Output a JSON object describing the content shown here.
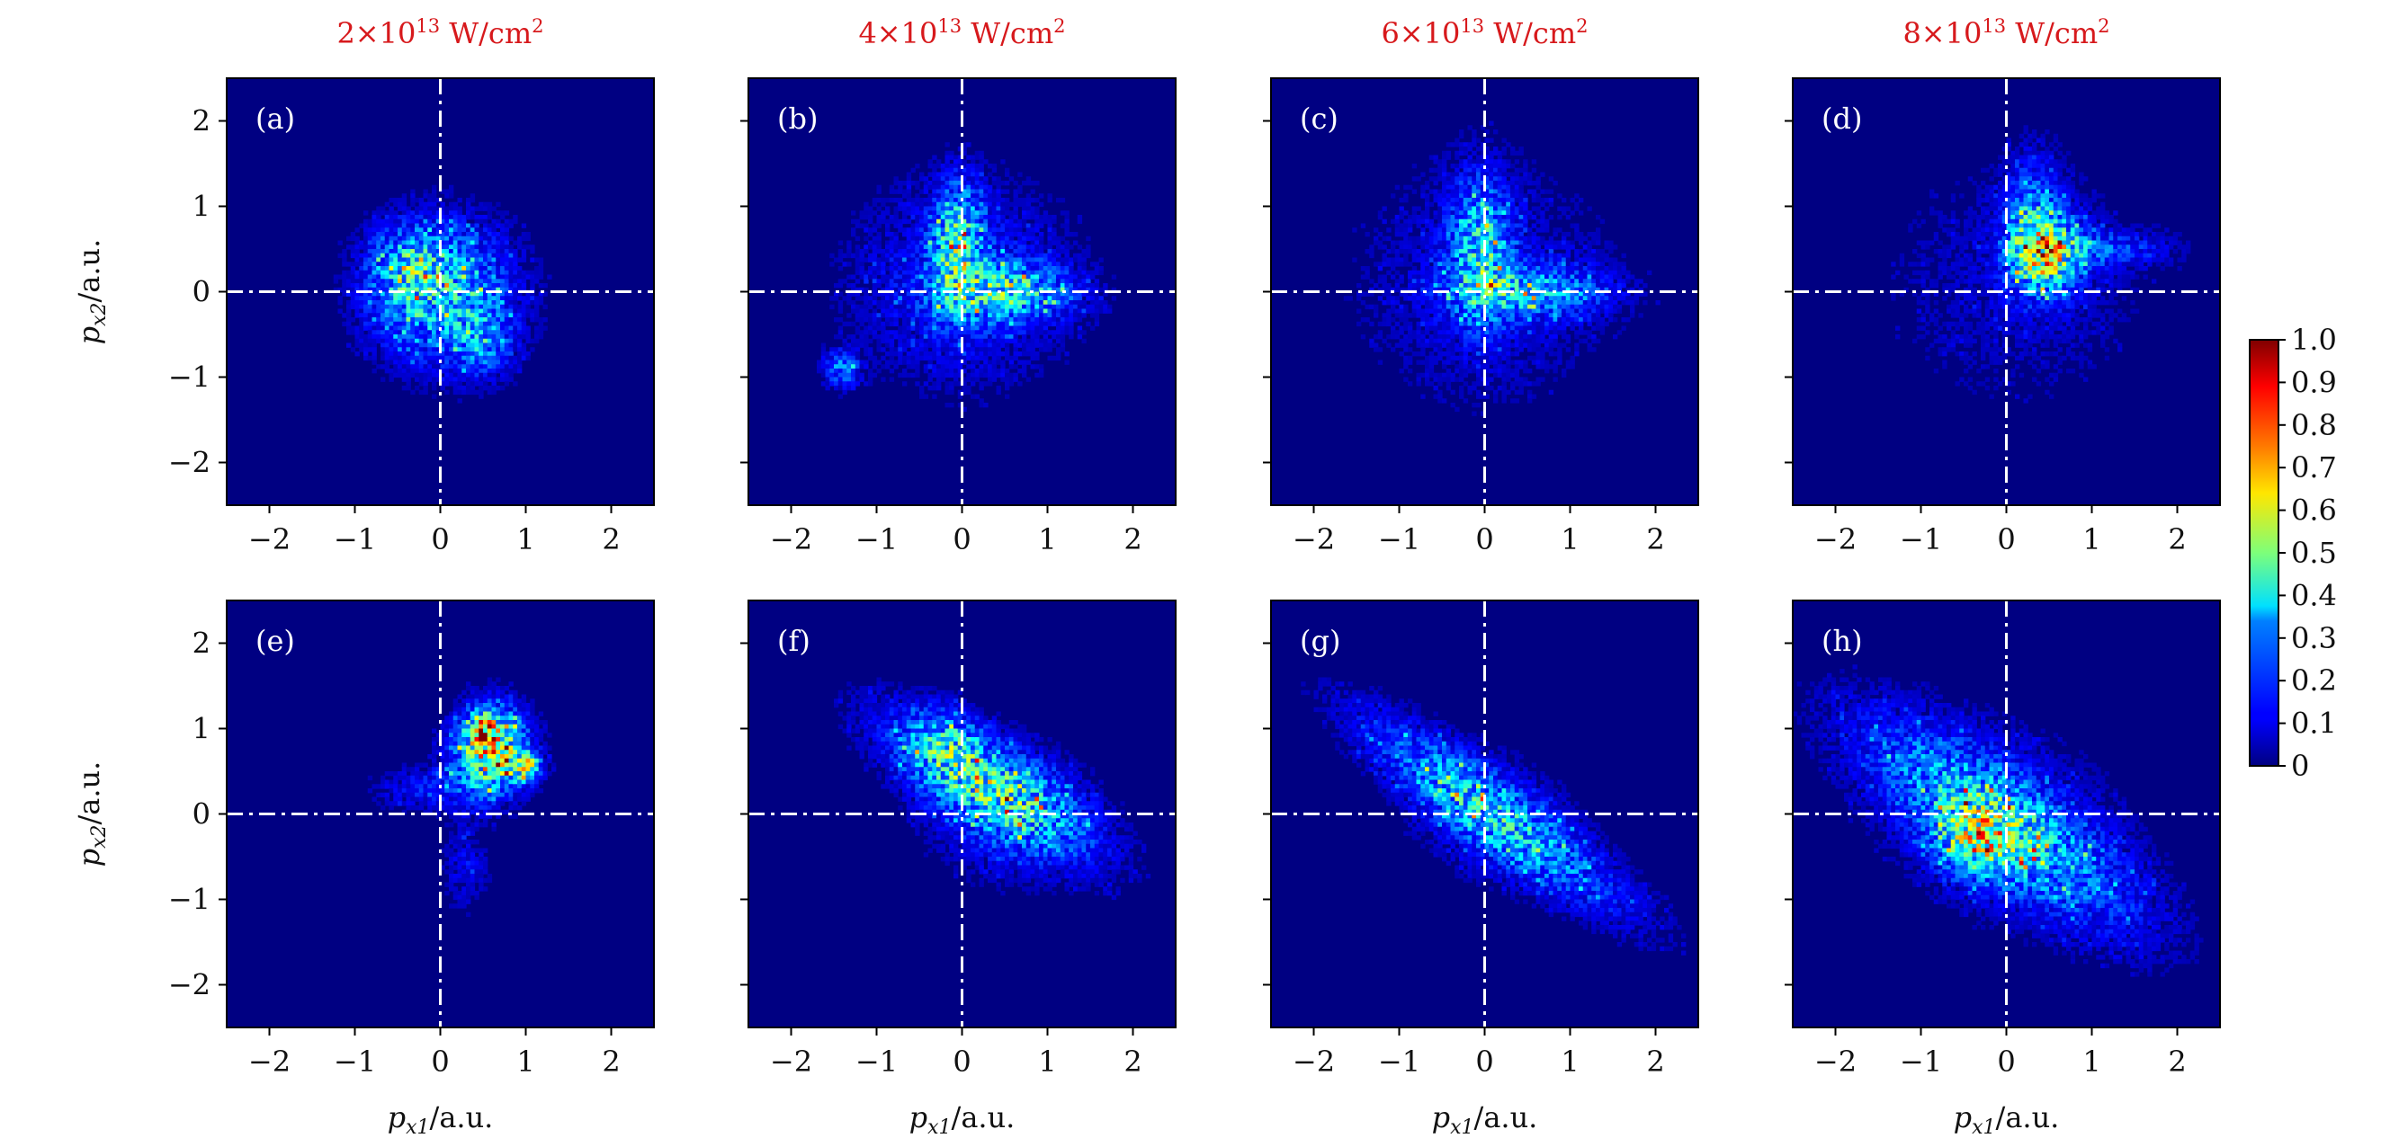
{
  "figure": {
    "colors": {
      "background": "#000082",
      "frame": "#000000",
      "guide_lines": "#ffffff",
      "panel_label": "#ffffff",
      "column_title": "#d7191c",
      "tick_text": "#111111"
    },
    "colormap": "jet",
    "xlabel_main": "p",
    "xlabel_sub": "x1",
    "xlabel_unit": "/a.u.",
    "ylabel_main": "p",
    "ylabel_sub": "x2",
    "ylabel_unit": "/a.u.",
    "x_ticks": [
      "−2",
      "−1",
      "0",
      "1",
      "2"
    ],
    "y_ticks": [
      "2",
      "1",
      "0",
      "−1",
      "−2"
    ],
    "colorbar_ticks": [
      "1.0",
      "0.9",
      "0.8",
      "0.7",
      "0.6",
      "0.5",
      "0.4",
      "0.3",
      "0.2",
      "0.1",
      "0"
    ],
    "column_titles": [
      {
        "mantissa": "2",
        "times": "×",
        "base": "10",
        "exponent": "13",
        "unit": " W/cm",
        "unit_exp": "2"
      },
      {
        "mantissa": "4",
        "times": "×",
        "base": "10",
        "exponent": "13",
        "unit": " W/cm",
        "unit_exp": "2"
      },
      {
        "mantissa": "6",
        "times": "×",
        "base": "10",
        "exponent": "13",
        "unit": " W/cm",
        "unit_exp": "2"
      },
      {
        "mantissa": "8",
        "times": "×",
        "base": "10",
        "exponent": "13",
        "unit": " W/cm",
        "unit_exp": "2"
      }
    ]
  },
  "chart_data": {
    "type": "heatmap",
    "xlabel": "p_x1/a.u.",
    "ylabel": "p_x2/a.u.",
    "xlim": [
      -2.5,
      2.5
    ],
    "ylim": [
      -2.5,
      2.5
    ],
    "colorbar_range": [
      0,
      1.0
    ],
    "panels": [
      {
        "label": "(a)",
        "row": 0,
        "col": 0,
        "blobs": [
          {
            "x": 0.0,
            "y": 0.0,
            "sx": 0.6,
            "sy": 0.58,
            "a": 0.32,
            "rot": 0
          },
          {
            "x": -0.4,
            "y": 0.3,
            "sx": 0.28,
            "sy": 0.3,
            "a": 0.18,
            "rot": 0
          },
          {
            "x": 0.5,
            "y": -0.6,
            "sx": 0.25,
            "sy": 0.3,
            "a": 0.15,
            "rot": 0
          }
        ]
      },
      {
        "label": "(b)",
        "row": 0,
        "col": 1,
        "blobs": [
          {
            "x": 0.0,
            "y": 0.1,
            "sx": 0.95,
            "sy": 0.85,
            "a": 0.14,
            "rot": 0
          },
          {
            "x": -0.05,
            "y": 0.55,
            "sx": 0.2,
            "sy": 0.5,
            "a": 0.32,
            "rot": 0
          },
          {
            "x": 0.55,
            "y": 0.0,
            "sx": 0.5,
            "sy": 0.22,
            "a": 0.3,
            "rot": 0
          },
          {
            "x": -1.4,
            "y": -0.9,
            "sx": 0.15,
            "sy": 0.15,
            "a": 0.22,
            "rot": 0
          }
        ]
      },
      {
        "label": "(c)",
        "row": 0,
        "col": 2,
        "blobs": [
          {
            "x": 0.0,
            "y": 0.1,
            "sx": 1.15,
            "sy": 1.05,
            "a": 0.09,
            "rot": 0
          },
          {
            "x": -0.05,
            "y": 0.5,
            "sx": 0.25,
            "sy": 0.6,
            "a": 0.28,
            "rot": 0
          },
          {
            "x": 0.6,
            "y": 0.0,
            "sx": 0.6,
            "sy": 0.2,
            "a": 0.24,
            "rot": 0
          }
        ]
      },
      {
        "label": "(d)",
        "row": 0,
        "col": 3,
        "blobs": [
          {
            "x": 0.1,
            "y": 0.1,
            "sx": 1.2,
            "sy": 1.1,
            "a": 0.07,
            "rot": 0
          },
          {
            "x": 0.45,
            "y": 0.45,
            "sx": 0.28,
            "sy": 0.32,
            "a": 0.5,
            "rot": 0
          },
          {
            "x": 0.3,
            "y": 1.0,
            "sx": 0.22,
            "sy": 0.45,
            "a": 0.16,
            "rot": 0
          },
          {
            "x": 1.2,
            "y": 0.5,
            "sx": 0.5,
            "sy": 0.15,
            "a": 0.14,
            "rot": 0
          }
        ]
      },
      {
        "label": "(e)",
        "row": 1,
        "col": 0,
        "blobs": [
          {
            "x": 0.6,
            "y": 0.75,
            "sx": 0.3,
            "sy": 0.35,
            "a": 0.55,
            "rot": 0
          },
          {
            "x": 0.5,
            "y": 0.95,
            "sx": 0.1,
            "sy": 0.13,
            "a": 0.45,
            "rot": 0
          },
          {
            "x": 1.0,
            "y": 0.55,
            "sx": 0.12,
            "sy": 0.1,
            "a": 0.4,
            "rot": 0
          },
          {
            "x": -0.2,
            "y": 0.3,
            "sx": 0.45,
            "sy": 0.2,
            "a": 0.12,
            "rot": 0
          },
          {
            "x": 0.3,
            "y": -0.6,
            "sx": 0.2,
            "sy": 0.4,
            "a": 0.1,
            "rot": 0
          }
        ]
      },
      {
        "label": "(f)",
        "row": 1,
        "col": 1,
        "blobs": [
          {
            "x": 0.3,
            "y": 0.35,
            "sx": 1.0,
            "sy": 0.34,
            "a": 0.32,
            "rot": -0.55
          },
          {
            "x": -0.2,
            "y": 0.8,
            "sx": 0.3,
            "sy": 0.3,
            "a": 0.14,
            "rot": 0
          },
          {
            "x": 0.5,
            "y": 0.0,
            "sx": 0.65,
            "sy": 0.55,
            "a": 0.12,
            "rot": 0
          }
        ]
      },
      {
        "label": "(g)",
        "row": 1,
        "col": 2,
        "blobs": [
          {
            "x": 0.1,
            "y": 0.0,
            "sx": 1.3,
            "sy": 0.3,
            "a": 0.3,
            "rot": -0.62
          },
          {
            "x": 0.05,
            "y": -0.1,
            "sx": 0.7,
            "sy": 0.6,
            "a": 0.06,
            "rot": 0
          }
        ]
      },
      {
        "label": "(h)",
        "row": 1,
        "col": 3,
        "blobs": [
          {
            "x": -0.1,
            "y": -0.1,
            "sx": 1.35,
            "sy": 0.45,
            "a": 0.3,
            "rot": -0.6
          },
          {
            "x": -0.3,
            "y": -0.3,
            "sx": 0.35,
            "sy": 0.3,
            "a": 0.3,
            "rot": 0
          },
          {
            "x": 0.0,
            "y": 0.0,
            "sx": 1.1,
            "sy": 1.0,
            "a": 0.05,
            "rot": 0
          }
        ]
      }
    ]
  }
}
